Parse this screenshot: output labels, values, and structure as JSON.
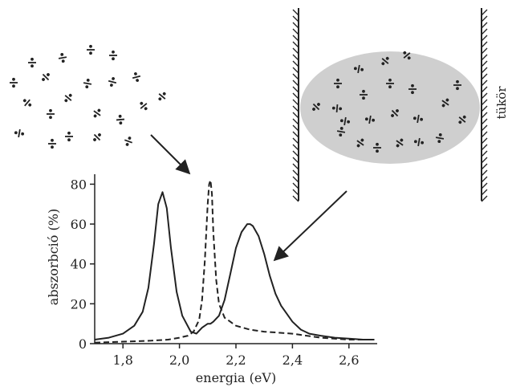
{
  "labels": {
    "mirror": "tükör"
  },
  "colors": {
    "ink": "#222222",
    "cavity_fill": "#cfcfcf"
  },
  "molecule_icon": "dipole-molecule-glyph",
  "chart_data": {
    "type": "line",
    "xlabel": "energia (eV)",
    "ylabel": "abszorbció (%)",
    "xlim": [
      1.7,
      2.7
    ],
    "ylim": [
      0,
      85
    ],
    "x_ticks": [
      "1,8",
      "2,0",
      "2,2",
      "2,4",
      "2,6"
    ],
    "y_ticks": [
      "0",
      "20",
      "40",
      "60",
      "80"
    ],
    "grid": false,
    "series": [
      {
        "style": "solid",
        "x": [
          1.7,
          1.75,
          1.8,
          1.84,
          1.87,
          1.89,
          1.91,
          1.925,
          1.94,
          1.955,
          1.97,
          1.99,
          2.01,
          2.04,
          2.06,
          2.08,
          2.1,
          2.11,
          2.12,
          2.14,
          2.16,
          2.18,
          2.2,
          2.22,
          2.24,
          2.25,
          2.26,
          2.28,
          2.3,
          2.32,
          2.34,
          2.36,
          2.38,
          2.4,
          2.43,
          2.46,
          2.5,
          2.55,
          2.6,
          2.65,
          2.69
        ],
        "y": [
          2,
          3,
          5,
          9,
          16,
          28,
          50,
          70,
          76,
          68,
          48,
          26,
          14,
          6,
          5,
          8,
          10,
          10,
          11,
          14,
          22,
          35,
          48,
          56,
          60,
          60,
          59,
          54,
          45,
          34,
          25,
          19,
          15,
          11,
          7,
          5,
          4,
          3,
          2.5,
          2,
          2
        ]
      },
      {
        "style": "dashed",
        "x": [
          1.7,
          1.8,
          1.9,
          1.96,
          2.0,
          2.03,
          2.05,
          2.07,
          2.08,
          2.09,
          2.1,
          2.105,
          2.11,
          2.115,
          2.12,
          2.13,
          2.14,
          2.16,
          2.18,
          2.2,
          2.25,
          2.3,
          2.35,
          2.4,
          2.45,
          2.5,
          2.6,
          2.69
        ],
        "y": [
          0.5,
          1,
          1.5,
          2,
          3,
          4,
          6,
          12,
          22,
          42,
          70,
          80,
          82,
          75,
          56,
          32,
          20,
          13,
          11,
          9,
          7,
          6,
          5.5,
          5,
          4,
          3,
          2,
          2
        ]
      }
    ]
  }
}
